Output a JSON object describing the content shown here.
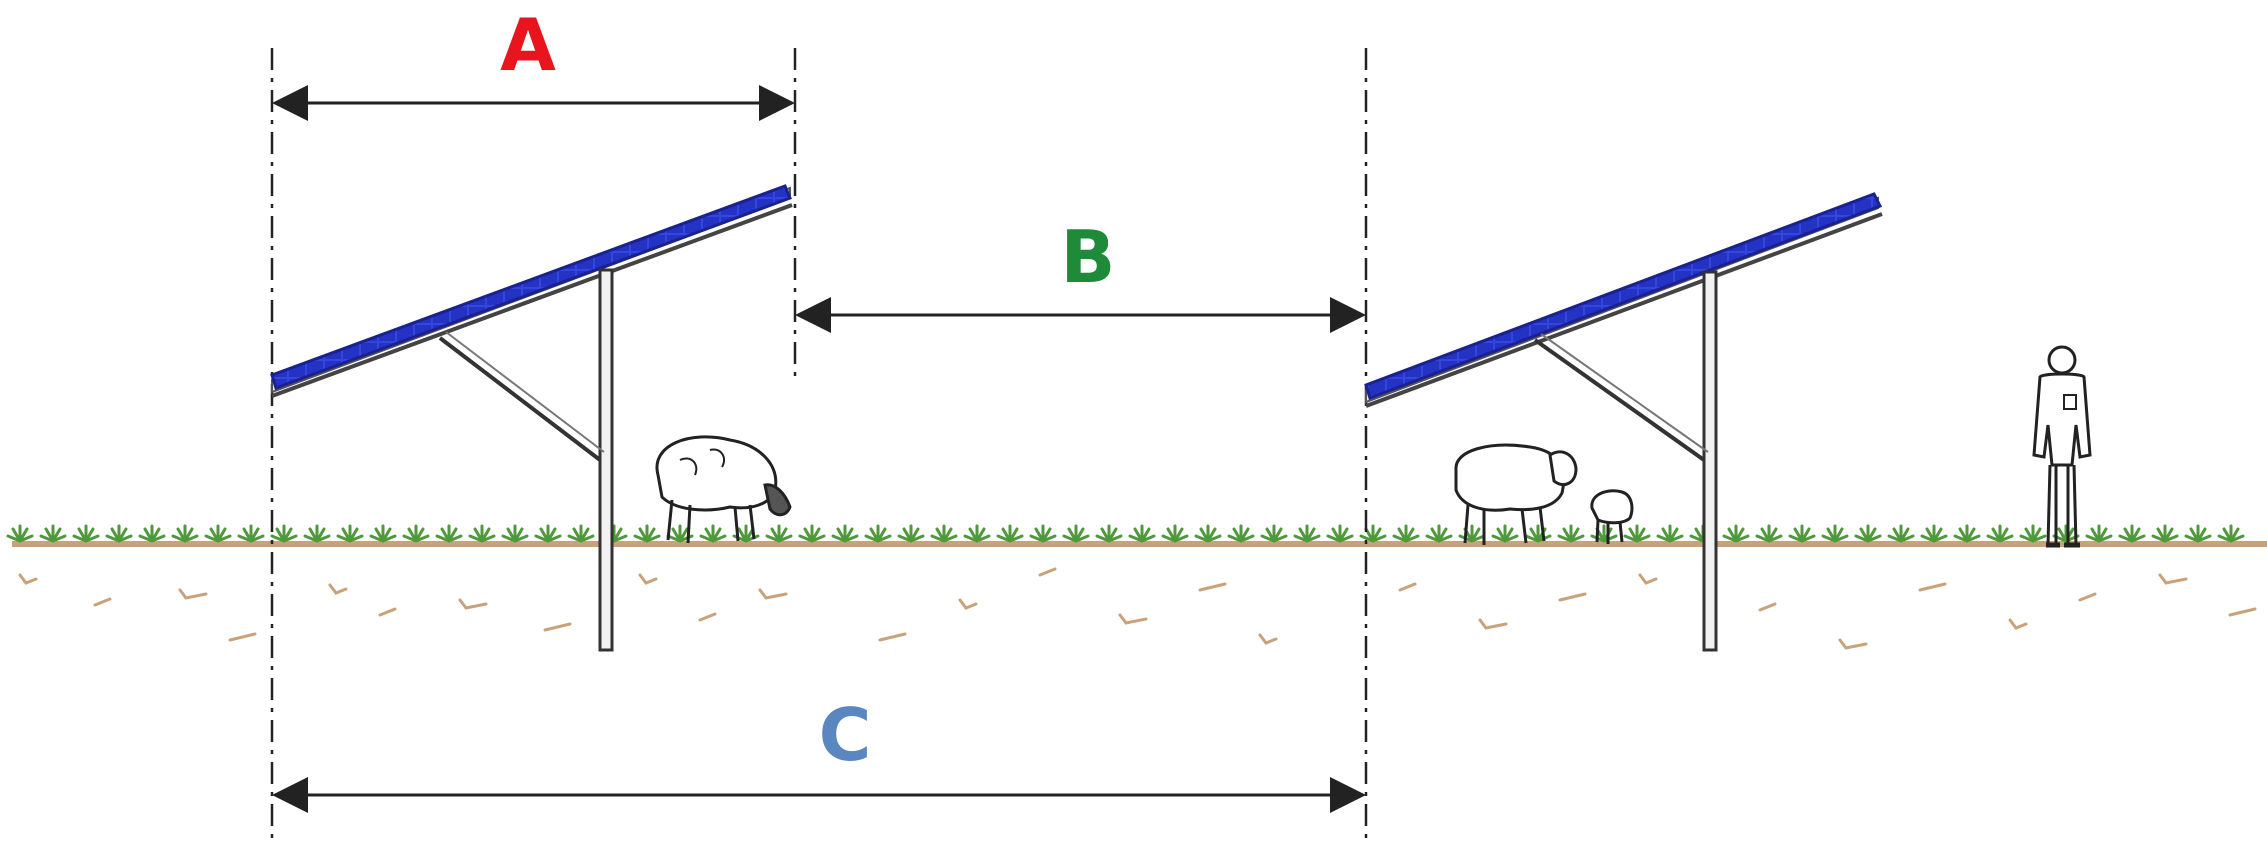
{
  "labels": {
    "a": "A",
    "b": "B",
    "c": "C"
  },
  "colors": {
    "label_a": "#e8141e",
    "label_b": "#1e8a3a",
    "label_c": "#5b87c0",
    "panel": "#2f3fd6",
    "panel_edge": "#1a2290",
    "ground": "#c8a27a",
    "grass": "#4e9a3a",
    "line": "#222222"
  },
  "icons": {
    "panel_array": "solar-panel-icon",
    "animal": "sheep-icon",
    "person": "person-icon"
  }
}
